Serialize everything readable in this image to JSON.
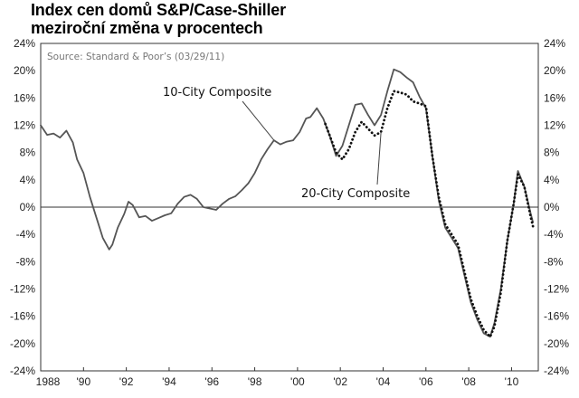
{
  "header": {
    "title_line1": "Index cen domů S&P/Case-Shiller",
    "title_line2": "meziroční změna v procentech"
  },
  "chart_data": {
    "type": "line",
    "title": "Index cen domů S&P/Case-Shiller meziroční změna v procentech",
    "source": "Source: Standard & Poor’s (03/29/11)",
    "xlim": [
      1988,
      2011.25
    ],
    "ylim": [
      -24,
      24
    ],
    "grid": false,
    "x_ticks": [
      1988,
      1990,
      1992,
      1994,
      1996,
      1998,
      2000,
      2002,
      2004,
      2006,
      2008,
      2010
    ],
    "x_tick_labels": [
      "1988",
      "'90",
      "'92",
      "'94",
      "'96",
      "'98",
      "'00",
      "'02",
      "'04",
      "'06",
      "'08",
      "'10"
    ],
    "y_ticks": [
      24,
      20,
      16,
      12,
      8,
      4,
      0,
      -4,
      -8,
      -12,
      -16,
      -20,
      -24
    ],
    "y_tick_labels": [
      "24%",
      "20%",
      "16%",
      "12%",
      "8%",
      "4%",
      "0%",
      "-4%",
      "-8%",
      "-12%",
      "-16%",
      "-20%",
      "-24%"
    ],
    "series": [
      {
        "name": "10-City Composite",
        "style": "solid",
        "color": "#555555",
        "x": [
          1988.0,
          1988.3,
          1988.6,
          1988.9,
          1989.2,
          1989.5,
          1989.7,
          1990.0,
          1990.3,
          1990.6,
          1990.9,
          1991.2,
          1991.35,
          1991.6,
          1991.9,
          1992.1,
          1992.3,
          1992.6,
          1992.9,
          1993.2,
          1993.5,
          1993.8,
          1994.1,
          1994.4,
          1994.7,
          1995.0,
          1995.3,
          1995.6,
          1995.9,
          1996.2,
          1996.5,
          1996.8,
          1997.1,
          1997.4,
          1997.7,
          1998.0,
          1998.3,
          1998.6,
          1998.9,
          1999.2,
          1999.5,
          1999.8,
          2000.1,
          2000.4,
          2000.6,
          2000.9,
          2001.2,
          2001.5,
          2001.8,
          2002.1,
          2002.4,
          2002.7,
          2003.0,
          2003.3,
          2003.6,
          2003.9,
          2004.2,
          2004.5,
          2004.8,
          2005.1,
          2005.4,
          2005.7,
          2006.0,
          2006.3,
          2006.6,
          2006.9,
          2007.2,
          2007.5,
          2007.8,
          2008.1,
          2008.4,
          2008.7,
          2009.0,
          2009.2,
          2009.5,
          2009.8,
          2010.1,
          2010.3,
          2010.6,
          2010.9,
          2011.0
        ],
        "y": [
          12.0,
          10.6,
          10.8,
          10.2,
          11.2,
          9.5,
          7.0,
          5.0,
          1.5,
          -1.5,
          -4.5,
          -6.2,
          -5.5,
          -3.0,
          -1.0,
          0.8,
          0.3,
          -1.5,
          -1.3,
          -2.0,
          -1.6,
          -1.2,
          -0.9,
          0.5,
          1.5,
          1.8,
          1.2,
          0.0,
          -0.2,
          -0.4,
          0.5,
          1.2,
          1.6,
          2.5,
          3.5,
          5.0,
          7.0,
          8.5,
          9.8,
          9.2,
          9.6,
          9.8,
          11.0,
          13.0,
          13.2,
          14.5,
          13.0,
          10.5,
          7.5,
          9.0,
          12.0,
          15.0,
          15.2,
          13.5,
          12.0,
          13.5,
          17.0,
          20.2,
          19.8,
          19.0,
          18.3,
          16.2,
          14.5,
          7.5,
          1.0,
          -3.0,
          -4.5,
          -6.0,
          -10.0,
          -14.0,
          -16.5,
          -18.5,
          -19.0,
          -17.0,
          -12.0,
          -5.0,
          0.5,
          5.3,
          3.0,
          -1.0,
          -2.2
        ]
      },
      {
        "name": "20-City Composite",
        "style": "dotted",
        "color": "#111111",
        "x": [
          2001.3,
          2001.5,
          2001.8,
          2002.1,
          2002.4,
          2002.7,
          2003.0,
          2003.3,
          2003.6,
          2003.9,
          2004.2,
          2004.5,
          2004.8,
          2005.1,
          2005.4,
          2005.7,
          2006.0,
          2006.3,
          2006.6,
          2006.9,
          2007.2,
          2007.5,
          2007.8,
          2008.1,
          2008.4,
          2008.7,
          2009.0,
          2009.2,
          2009.5,
          2009.8,
          2010.1,
          2010.3,
          2010.6,
          2010.9,
          2011.0
        ],
        "y": [
          12.2,
          10.5,
          8.0,
          7.0,
          8.5,
          11.0,
          12.5,
          11.5,
          10.5,
          11.0,
          14.5,
          17.0,
          16.8,
          16.5,
          15.5,
          15.2,
          14.8,
          7.5,
          1.5,
          -2.5,
          -4.0,
          -5.5,
          -9.5,
          -13.5,
          -16.0,
          -18.0,
          -19.0,
          -17.5,
          -12.5,
          -5.0,
          0.5,
          4.8,
          3.0,
          -1.5,
          -2.8
        ]
      }
    ],
    "annotations": [
      {
        "text": "10-City Composite",
        "target_series": 0
      },
      {
        "text": "20-City Composite",
        "target_series": 1
      }
    ]
  }
}
